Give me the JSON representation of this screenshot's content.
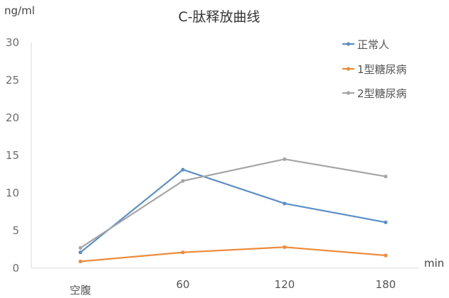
{
  "chart_data": {
    "type": "line",
    "title": "C-肽释放曲线",
    "ylabel": "ng/ml",
    "xlabel": "min",
    "categories": [
      "空腹",
      "60",
      "120",
      "180"
    ],
    "ylim": [
      0,
      30
    ],
    "yticks": [
      0,
      5,
      10,
      15,
      20,
      25,
      30
    ],
    "grid": false,
    "legend_position": "top-right",
    "series": [
      {
        "name": "正常人",
        "color": "#5b8fc7",
        "values": [
          2.1,
          13.1,
          8.6,
          6.1
        ]
      },
      {
        "name": "1型糖尿病",
        "color": "#ed8b3a",
        "values": [
          0.9,
          2.1,
          2.8,
          1.7
        ]
      },
      {
        "name": "2型糖尿病",
        "color": "#a6a6a6",
        "values": [
          2.7,
          11.6,
          14.5,
          12.2
        ]
      }
    ]
  }
}
